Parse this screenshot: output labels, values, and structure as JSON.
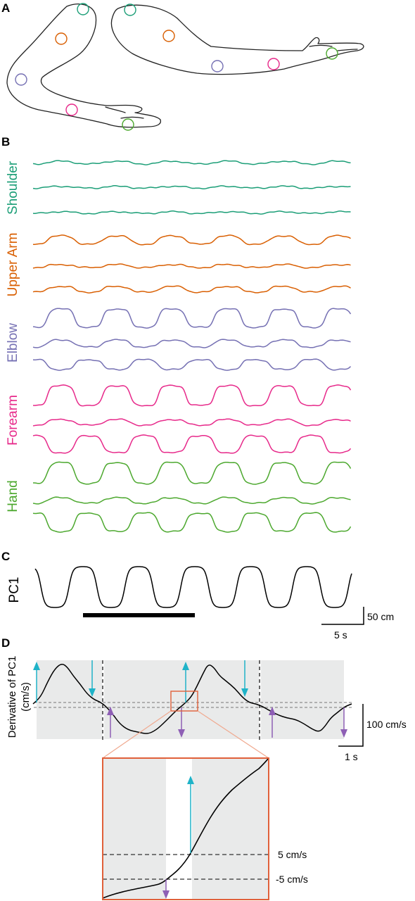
{
  "panels": {
    "a": "A",
    "b": "B",
    "c": "C",
    "d": "D"
  },
  "colors": {
    "shoulder": "#1b9e77",
    "upper_arm": "#d95f02",
    "elbow": "#7570b3",
    "forearm": "#e7298a",
    "hand": "#4ca82e",
    "pc": "#000000",
    "up_arrow": "#1fb3c8",
    "down_arrow": "#8e5fb5",
    "shade": "#e9eaea",
    "zoom_box": "#e0603a"
  },
  "markers_bent": [
    "shoulder",
    "upper_arm",
    "elbow",
    "forearm",
    "hand"
  ],
  "markers_straight": [
    "shoulder",
    "upper_arm",
    "elbow",
    "forearm",
    "hand"
  ],
  "segments": [
    {
      "key": "shoulder",
      "label": "Shoulder"
    },
    {
      "key": "upper_arm",
      "label": "Upper Arm"
    },
    {
      "key": "elbow",
      "label": "Elblow"
    },
    {
      "key": "forearm",
      "label": "Forearm"
    },
    {
      "key": "hand",
      "label": "Hand"
    }
  ],
  "panel_c": {
    "ylabel": "PC1",
    "scale_y": "50 cm",
    "scale_x": "5 s"
  },
  "panel_d": {
    "ylabel_1": "Derivative of PC1",
    "ylabel_2": "(cm/s)",
    "scale_y": "100 cm/s",
    "scale_x": "1 s"
  },
  "inset": {
    "upper_threshold": "5 cm/s",
    "lower_threshold": "-5 cm/s"
  }
}
